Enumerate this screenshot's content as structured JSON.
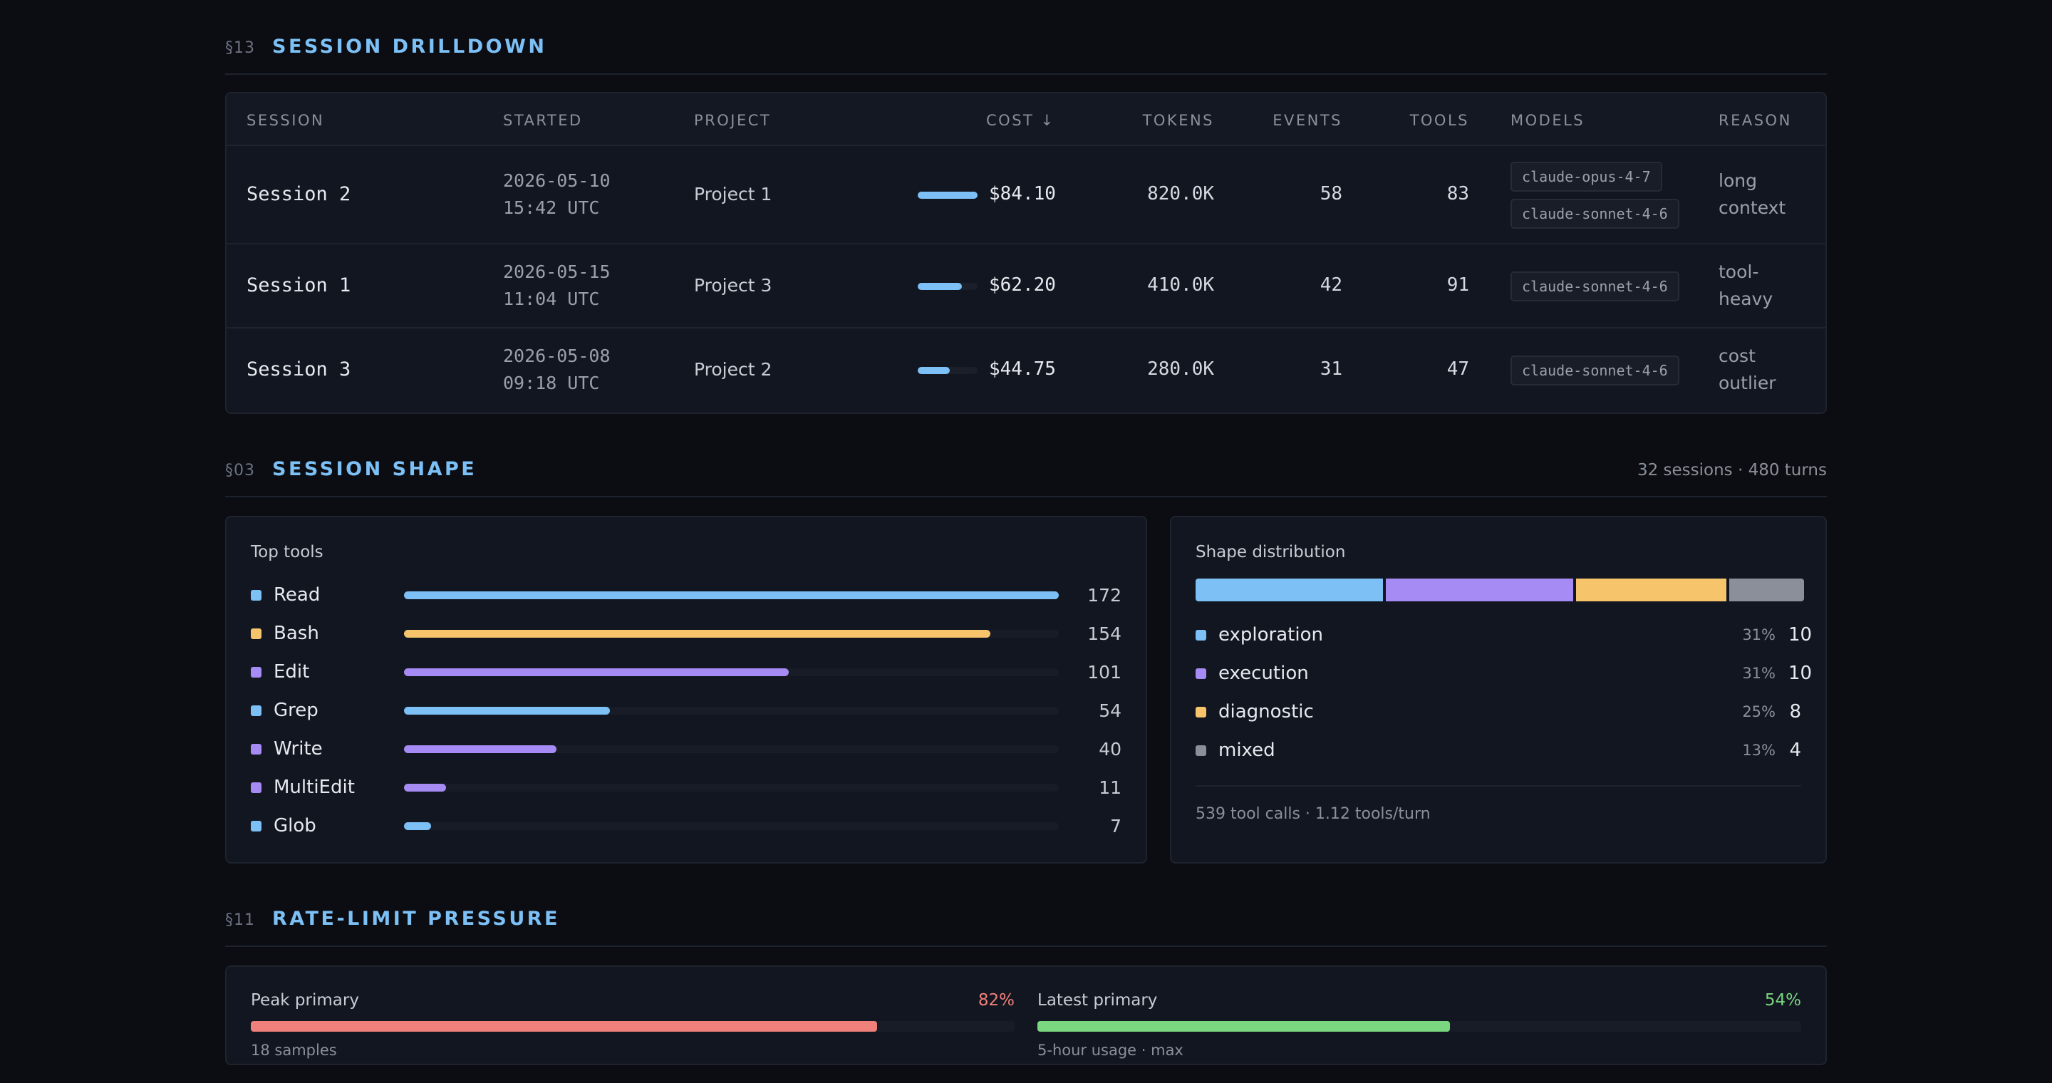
{
  "drilldown": {
    "num": "§13",
    "title": "SESSION DRILLDOWN",
    "columns": {
      "session": "SESSION",
      "started": "STARTED",
      "project": "PROJECT",
      "cost": "COST ↓",
      "tokens": "TOKENS",
      "events": "EVENTS",
      "tools": "TOOLS",
      "models": "MODELS",
      "reason": "REASON"
    },
    "rows": [
      {
        "session": "Session 2",
        "date": "2026-05-10",
        "time": "15:42 UTC",
        "project": "Project 1",
        "cost_fraction": 1.0,
        "cost": "$84.10",
        "tokens": "820.0K",
        "events": "58",
        "tools": "83",
        "models": [
          "claude-opus-4-7",
          "claude-sonnet-4-6"
        ],
        "reason_1": "long",
        "reason_2": "context"
      },
      {
        "session": "Session 1",
        "date": "2026-05-15",
        "time": "11:04 UTC",
        "project": "Project 3",
        "cost_fraction": 0.74,
        "cost": "$62.20",
        "tokens": "410.0K",
        "events": "42",
        "tools": "91",
        "models": [
          "claude-sonnet-4-6"
        ],
        "reason_1": "tool-",
        "reason_2": "heavy"
      },
      {
        "session": "Session 3",
        "date": "2026-05-08",
        "time": "09:18 UTC",
        "project": "Project 2",
        "cost_fraction": 0.53,
        "cost": "$44.75",
        "tokens": "280.0K",
        "events": "31",
        "tools": "47",
        "models": [
          "claude-sonnet-4-6"
        ],
        "reason_1": "cost",
        "reason_2": "outlier"
      }
    ]
  },
  "shape": {
    "num": "§03",
    "title": "SESSION SHAPE",
    "meta": "32 sessions · 480 turns",
    "top_tools": {
      "title": "Top tools",
      "max": 172,
      "items": [
        {
          "name": "Read",
          "value": 172,
          "color": "#7cc0f6"
        },
        {
          "name": "Bash",
          "value": 154,
          "color": "#f5c46b"
        },
        {
          "name": "Edit",
          "value": 101,
          "color": "#a78bf5"
        },
        {
          "name": "Grep",
          "value": 54,
          "color": "#7cc0f6"
        },
        {
          "name": "Write",
          "value": 40,
          "color": "#a78bf5"
        },
        {
          "name": "MultiEdit",
          "value": 11,
          "color": "#a78bf5"
        },
        {
          "name": "Glob",
          "value": 7,
          "color": "#7cc0f6"
        }
      ]
    },
    "distribution": {
      "title": "Shape distribution",
      "items": [
        {
          "name": "exploration",
          "pct": "31%",
          "count": 10,
          "color": "#7cc0f6"
        },
        {
          "name": "execution",
          "pct": "31%",
          "count": 10,
          "color": "#a78bf5"
        },
        {
          "name": "diagnostic",
          "pct": "25%",
          "count": 8,
          "color": "#f5c46b"
        },
        {
          "name": "mixed",
          "pct": "13%",
          "count": 4,
          "color": "#8a8f99"
        }
      ],
      "footer": "539 tool calls · 1.12 tools/turn"
    }
  },
  "rate": {
    "num": "§11",
    "title": "RATE-LIMIT PRESSURE",
    "peak": {
      "label": "Peak primary",
      "pct": "82%",
      "value": 0.82,
      "color": "#f0807a",
      "sub": "18 samples"
    },
    "latest": {
      "label": "Latest primary",
      "pct": "54%",
      "value": 0.54,
      "color": "#7ad67f",
      "sub": "5-hour usage · max"
    }
  }
}
